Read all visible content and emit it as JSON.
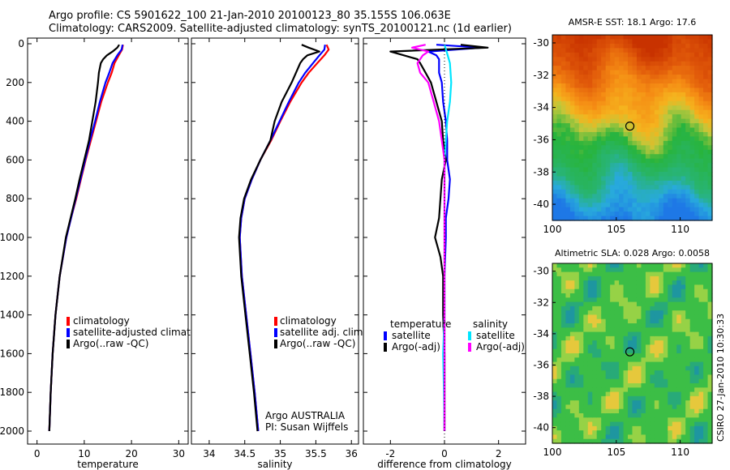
{
  "title": {
    "line1": "Argo profile: CS 5901622_100 21-Jan-2010 20100123_80 35.155S 106.063E",
    "line2": "Climatology: CARS2009. Satellite-adjusted climatology: synTS_20100121.nc (1d earlier)"
  },
  "credit": "CSIRO 27-Jan-2010 10:30:33",
  "colors": {
    "climatology": "#ff0000",
    "satellite": "#0000ff",
    "argo": "#000000",
    "sal_satellite": "#00e5ff",
    "sal_argo": "#ff00ff"
  },
  "chart_data": [
    {
      "type": "line",
      "panel": "temperature",
      "xlabel": "temperature",
      "ylabel": "",
      "xlim": [
        -2,
        32
      ],
      "ylim": [
        2050,
        -10
      ],
      "xticks": [
        0,
        10,
        20,
        30
      ],
      "yticks": [
        0,
        200,
        400,
        600,
        800,
        1000,
        1200,
        1400,
        1600,
        1800,
        2000
      ],
      "legend": [
        "climatology",
        "satellite-adjusted climatology",
        "Argo(..raw -QC)"
      ],
      "series": [
        {
          "name": "climatology",
          "color": "#ff0000",
          "depth": [
            5,
            30,
            60,
            100,
            150,
            200,
            300,
            400,
            500,
            600,
            700,
            800,
            900,
            1000,
            1200,
            1400,
            1600,
            1800,
            2000
          ],
          "values": [
            18.2,
            18.0,
            17.3,
            16.4,
            15.8,
            15.0,
            13.6,
            12.5,
            11.4,
            10.3,
            9.3,
            8.3,
            7.2,
            6.2,
            4.8,
            3.9,
            3.3,
            2.9,
            2.6
          ]
        },
        {
          "name": "satellite-adjusted climatology",
          "color": "#0000ff",
          "depth": [
            5,
            30,
            60,
            100,
            150,
            200,
            300,
            400,
            500,
            600,
            700,
            800,
            900,
            1000,
            1200,
            1400,
            1600,
            1800,
            2000
          ],
          "values": [
            18.1,
            17.9,
            17.0,
            16.0,
            15.3,
            14.5,
            13.3,
            12.3,
            11.2,
            10.2,
            9.2,
            8.2,
            7.2,
            6.2,
            4.8,
            3.9,
            3.3,
            2.9,
            2.6
          ]
        },
        {
          "name": "Argo(..raw -QC)",
          "color": "#000000",
          "depth": [
            5,
            20,
            40,
            60,
            80,
            100,
            150,
            200,
            300,
            400,
            500,
            600,
            700,
            800,
            900,
            1000,
            1200,
            1400,
            1600,
            1800,
            2000
          ],
          "values": [
            17.4,
            17.0,
            16.0,
            14.8,
            14.0,
            13.5,
            13.1,
            12.9,
            12.4,
            11.7,
            11.0,
            10.0,
            9.0,
            8.1,
            7.1,
            6.1,
            4.8,
            3.9,
            3.3,
            2.9,
            2.6
          ]
        }
      ]
    },
    {
      "type": "line",
      "panel": "salinity",
      "xlabel": "salinity",
      "ylabel": "",
      "xlim": [
        33.75,
        36.1
      ],
      "ylim": [
        2050,
        -10
      ],
      "xticks": [
        34,
        34.5,
        35,
        35.5,
        36
      ],
      "yticks": [
        0,
        200,
        400,
        600,
        800,
        1000,
        1200,
        1400,
        1600,
        1800,
        2000
      ],
      "legend": [
        "climatology",
        "satellite adj. clim.",
        "Argo(..raw -QC)"
      ],
      "annotation": [
        "Argo AUSTRALIA",
        "PI: Susan Wijffels"
      ],
      "series": [
        {
          "name": "climatology",
          "color": "#ff0000",
          "depth": [
            5,
            30,
            60,
            100,
            150,
            200,
            300,
            400,
            500,
            600,
            700,
            800,
            900,
            1000,
            1200,
            1400,
            1600,
            1800,
            2000
          ],
          "values": [
            35.65,
            35.68,
            35.62,
            35.52,
            35.4,
            35.3,
            35.14,
            35.0,
            34.87,
            34.72,
            34.6,
            34.5,
            34.45,
            34.43,
            34.46,
            34.52,
            34.58,
            34.64,
            34.69
          ]
        },
        {
          "name": "satellite adj. clim.",
          "color": "#0000ff",
          "depth": [
            5,
            30,
            60,
            100,
            150,
            200,
            300,
            400,
            500,
            600,
            700,
            800,
            900,
            1000,
            1200,
            1400,
            1600,
            1800,
            2000
          ],
          "values": [
            35.63,
            35.62,
            35.55,
            35.46,
            35.35,
            35.26,
            35.12,
            34.99,
            34.86,
            34.72,
            34.6,
            34.5,
            34.45,
            34.43,
            34.46,
            34.52,
            34.58,
            34.64,
            34.69
          ]
        },
        {
          "name": "Argo(..raw -QC)",
          "color": "#000000",
          "depth": [
            5,
            20,
            40,
            60,
            80,
            100,
            150,
            200,
            300,
            400,
            500,
            600,
            700,
            800,
            900,
            1000,
            1200,
            1400,
            1600,
            1800,
            2000
          ],
          "values": [
            35.3,
            35.4,
            35.55,
            35.38,
            35.32,
            35.28,
            35.22,
            35.16,
            35.02,
            34.92,
            34.86,
            34.72,
            34.59,
            34.49,
            34.44,
            34.42,
            34.45,
            34.51,
            34.57,
            34.63,
            34.68
          ]
        }
      ]
    },
    {
      "type": "line",
      "panel": "difference",
      "xlabel": "difference from climatology",
      "ylabel": "",
      "xlim": [
        -3,
        3
      ],
      "ylim": [
        2050,
        -10
      ],
      "xticks": [
        -2,
        0,
        2
      ],
      "yticks": [
        0,
        200,
        400,
        600,
        800,
        1000,
        1200,
        1400,
        1600,
        1800,
        2000
      ],
      "legend_groups": [
        {
          "heading": "temperature",
          "entries": [
            "satellite",
            "Argo(-adj)"
          ]
        },
        {
          "heading": "salinity",
          "entries": [
            "satellite",
            "Argo(-adj)"
          ]
        }
      ],
      "series": [
        {
          "name": "temperature satellite",
          "color": "#0000ff",
          "depth": [
            5,
            20,
            40,
            60,
            80,
            100,
            150,
            200,
            300,
            400,
            500,
            600,
            700,
            800,
            900,
            1000,
            1200,
            1400,
            1600,
            1800,
            2000
          ],
          "values": [
            -0.3,
            1.4,
            -0.6,
            -0.3,
            -0.2,
            -0.2,
            -0.2,
            -0.1,
            -0.05,
            0.05,
            0.1,
            0.1,
            0.2,
            0.15,
            0.05,
            0.05,
            0.0,
            0.0,
            0.0,
            0.0,
            0.0
          ]
        },
        {
          "name": "temperature Argo(-adj)",
          "color": "#000000",
          "depth": [
            5,
            20,
            40,
            60,
            80,
            100,
            150,
            200,
            300,
            400,
            500,
            600,
            700,
            800,
            900,
            1000,
            1100,
            1200,
            1400,
            1600,
            1800,
            2000
          ],
          "values": [
            0.6,
            1.6,
            -2.0,
            -1.5,
            -1.0,
            -0.9,
            -0.7,
            -0.5,
            -0.3,
            -0.1,
            -0.05,
            0.05,
            -0.1,
            -0.15,
            -0.2,
            -0.35,
            -0.15,
            -0.05,
            -0.05,
            0.0,
            0.0,
            0.0
          ]
        },
        {
          "name": "salinity satellite",
          "color": "#00e5ff",
          "depth": [
            5,
            50,
            100,
            200,
            300,
            400,
            500,
            600,
            800,
            1000,
            1200,
            1400,
            1600,
            1800,
            2000
          ],
          "values": [
            0.0,
            0.1,
            0.2,
            0.25,
            0.2,
            0.1,
            0.05,
            0.0,
            0.0,
            0.0,
            0.0,
            0.0,
            -0.05,
            -0.02,
            0.0
          ]
        },
        {
          "name": "salinity Argo(-adj)",
          "color": "#ff00ff",
          "depth": [
            5,
            20,
            40,
            60,
            100,
            150,
            200,
            300,
            400,
            500,
            600,
            700,
            800,
            1000,
            1200,
            1400,
            1600,
            1800,
            2000
          ],
          "values": [
            -0.7,
            -1.2,
            -0.6,
            -0.8,
            -1.0,
            -0.9,
            -0.6,
            -0.4,
            -0.2,
            -0.1,
            0.0,
            0.0,
            0.0,
            0.0,
            0.0,
            0.0,
            0.0,
            0.0,
            0.0
          ]
        }
      ]
    },
    {
      "type": "heatmap",
      "panel": "sst-map",
      "title": "AMSR-E SST: 18.1 Argo: 17.6",
      "xlim": [
        100,
        112.5
      ],
      "ylim": [
        -41,
        -29.5
      ],
      "xticks": [
        100,
        105,
        110
      ],
      "yticks": [
        -30,
        -32,
        -34,
        -36,
        -38,
        -40
      ],
      "marker": {
        "lon": 106.063,
        "lat": -35.155
      },
      "value_range": [
        8,
        24
      ]
    },
    {
      "type": "heatmap",
      "panel": "sla-map",
      "title": "Altimetric SLA: 0.028 Argo: 0.0058",
      "xlim": [
        100,
        112.5
      ],
      "ylim": [
        -41,
        -29.5
      ],
      "xticks": [
        100,
        105,
        110
      ],
      "yticks": [
        -30,
        -32,
        -34,
        -36,
        -38,
        -40
      ],
      "marker": {
        "lon": 106.063,
        "lat": -35.155
      },
      "value_range": [
        -0.3,
        0.3
      ]
    }
  ]
}
